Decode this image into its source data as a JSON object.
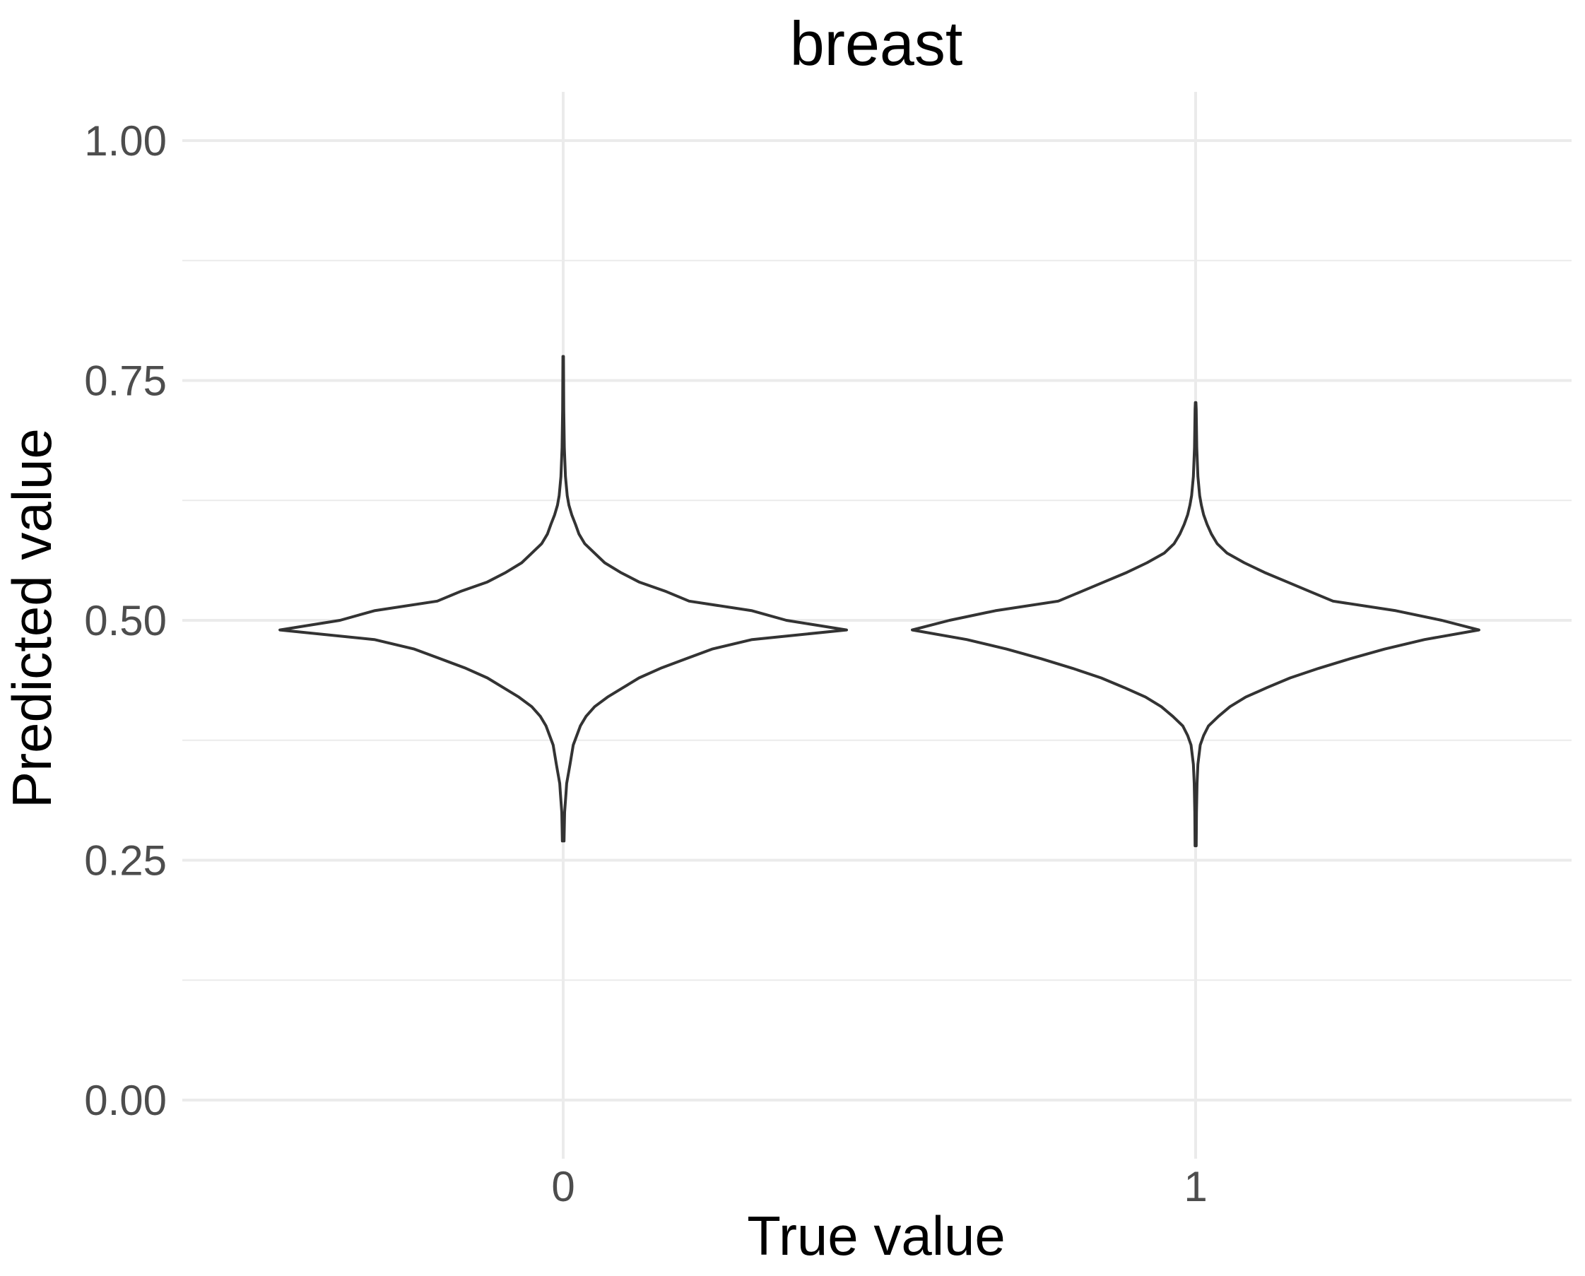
{
  "chart_data": {
    "type": "violin",
    "title": "breast",
    "xlabel": "True value",
    "ylabel": "Predicted value",
    "categories": [
      "0",
      "1"
    ],
    "ylim": [
      -0.05,
      1.05
    ],
    "yticks": [
      0.0,
      0.25,
      0.5,
      0.75,
      1.0
    ],
    "ytick_labels": [
      "0.00",
      "0.25",
      "0.50",
      "0.75",
      "1.00"
    ],
    "grid": true,
    "series": [
      {
        "category": "0",
        "min": 0.27,
        "max": 0.775,
        "density": [
          [
            0.27,
            0.003
          ],
          [
            0.3,
            0.005
          ],
          [
            0.32,
            0.01
          ],
          [
            0.33,
            0.012
          ],
          [
            0.34,
            0.018
          ],
          [
            0.35,
            0.024
          ],
          [
            0.37,
            0.035
          ],
          [
            0.39,
            0.06
          ],
          [
            0.4,
            0.08
          ],
          [
            0.41,
            0.11
          ],
          [
            0.42,
            0.155
          ],
          [
            0.43,
            0.21
          ],
          [
            0.44,
            0.265
          ],
          [
            0.45,
            0.34
          ],
          [
            0.46,
            0.43
          ],
          [
            0.47,
            0.52
          ],
          [
            0.48,
            0.66
          ],
          [
            0.49,
            0.99
          ],
          [
            0.5,
            0.78
          ],
          [
            0.51,
            0.66
          ],
          [
            0.52,
            0.44
          ],
          [
            0.53,
            0.36
          ],
          [
            0.54,
            0.265
          ],
          [
            0.55,
            0.2
          ],
          [
            0.56,
            0.145
          ],
          [
            0.57,
            0.11
          ],
          [
            0.58,
            0.075
          ],
          [
            0.59,
            0.055
          ],
          [
            0.6,
            0.043
          ],
          [
            0.61,
            0.03
          ],
          [
            0.62,
            0.02
          ],
          [
            0.63,
            0.014
          ],
          [
            0.65,
            0.008
          ],
          [
            0.68,
            0.004
          ],
          [
            0.72,
            0.002
          ],
          [
            0.775,
            0.001
          ]
        ]
      },
      {
        "category": "1",
        "min": 0.265,
        "max": 0.727,
        "density": [
          [
            0.265,
            0.002
          ],
          [
            0.3,
            0.003
          ],
          [
            0.33,
            0.005
          ],
          [
            0.35,
            0.008
          ],
          [
            0.37,
            0.016
          ],
          [
            0.38,
            0.028
          ],
          [
            0.39,
            0.045
          ],
          [
            0.4,
            0.08
          ],
          [
            0.41,
            0.12
          ],
          [
            0.42,
            0.175
          ],
          [
            0.43,
            0.25
          ],
          [
            0.44,
            0.33
          ],
          [
            0.45,
            0.43
          ],
          [
            0.46,
            0.54
          ],
          [
            0.47,
            0.66
          ],
          [
            0.48,
            0.8
          ],
          [
            0.49,
            0.99
          ],
          [
            0.5,
            0.86
          ],
          [
            0.51,
            0.7
          ],
          [
            0.52,
            0.48
          ],
          [
            0.53,
            0.4
          ],
          [
            0.54,
            0.32
          ],
          [
            0.55,
            0.24
          ],
          [
            0.56,
            0.17
          ],
          [
            0.57,
            0.11
          ],
          [
            0.58,
            0.075
          ],
          [
            0.59,
            0.055
          ],
          [
            0.6,
            0.04
          ],
          [
            0.61,
            0.028
          ],
          [
            0.62,
            0.02
          ],
          [
            0.63,
            0.014
          ],
          [
            0.65,
            0.008
          ],
          [
            0.68,
            0.004
          ],
          [
            0.72,
            0.002
          ],
          [
            0.727,
            0.001
          ]
        ]
      }
    ]
  }
}
